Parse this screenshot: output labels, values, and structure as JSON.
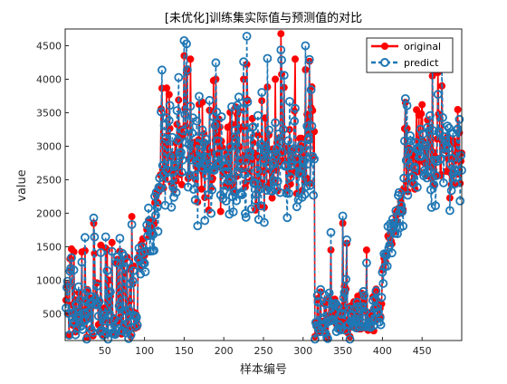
{
  "chart_data": {
    "type": "line",
    "title": "[未优化]训练集实际值与预测值的对比",
    "xlabel": "样本编号",
    "ylabel": "value",
    "xlim": [
      0,
      500
    ],
    "ylim": [
      100,
      4750
    ],
    "x_ticks": [
      50,
      100,
      150,
      200,
      250,
      300,
      350,
      400,
      450
    ],
    "y_ticks": [
      500,
      1000,
      1500,
      2000,
      2500,
      3000,
      3500,
      4000,
      4500
    ],
    "grid": false,
    "legend_position": "top-right",
    "segments": [
      {
        "x_range": [
          1,
          92
        ],
        "low": 150,
        "high": 1600,
        "peak_x": [
          36,
          55,
          75,
          84
        ],
        "peak_y": [
          1850,
          1000,
          1100,
          1950
        ]
      },
      {
        "x_range": [
          92,
          120
        ],
        "low": 1200,
        "high": 2300
      },
      {
        "x_range": [
          120,
          315
        ],
        "low": 2000,
        "high": 4700,
        "peak_x": [
          150,
          153,
          158,
          190,
          225,
          265,
          272,
          290
        ],
        "peak_y": [
          4350,
          4100,
          4300,
          4000,
          4000,
          4000,
          4680,
          4300
        ]
      },
      {
        "x_range": [
          315,
          400
        ],
        "low": 150,
        "high": 1000,
        "peak_x": [
          335,
          350,
          355,
          380
        ],
        "peak_y": [
          1450,
          1850,
          1550,
          1450
        ]
      },
      {
        "x_range": [
          400,
          428
        ],
        "low": 1200,
        "high": 2300
      },
      {
        "x_range": [
          428,
          500
        ],
        "low": 2100,
        "high": 4100,
        "peak_x": [
          463,
          470,
          475
        ],
        "peak_y": [
          4050,
          4100,
          3900
        ]
      }
    ],
    "series": [
      {
        "name": "original",
        "color": "#ff0000",
        "line_style": "solid",
        "marker": "filled-circle"
      },
      {
        "name": "predict",
        "color": "#1f77b4",
        "line_style": "dashed",
        "marker": "open-circle"
      }
    ]
  }
}
